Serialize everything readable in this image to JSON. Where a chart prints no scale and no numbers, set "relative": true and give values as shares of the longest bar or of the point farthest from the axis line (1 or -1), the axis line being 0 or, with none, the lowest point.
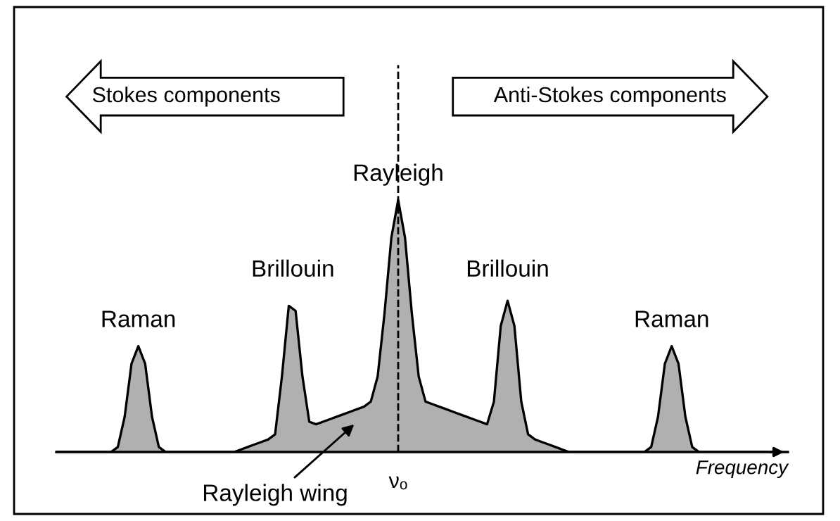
{
  "chart_data": {
    "type": "area",
    "relative": true,
    "xlabel": "Frequency",
    "color": "#b0b0b0",
    "categories": [
      null,
      null,
      null,
      null,
      null,
      null,
      null,
      null,
      null,
      null,
      null,
      null,
      null,
      null,
      null,
      null,
      null,
      null,
      null,
      null,
      null,
      null,
      null,
      null,
      null,
      null,
      null,
      null,
      null,
      null,
      null,
      null,
      null,
      null,
      null,
      null,
      null,
      null,
      null,
      null,
      null,
      null,
      null,
      null,
      null,
      null,
      null,
      null,
      null,
      null,
      null,
      null,
      null,
      null,
      null,
      null,
      null,
      null,
      null,
      null,
      null,
      null,
      null,
      null,
      null,
      null,
      null,
      null,
      null,
      null,
      null,
      null,
      null,
      null,
      null,
      null,
      null,
      null,
      null,
      null,
      null,
      null,
      null,
      null,
      null,
      null,
      null,
      null,
      null,
      null,
      null,
      null,
      null,
      null,
      null,
      null,
      null,
      null,
      null,
      null,
      null,
      null,
      null,
      null,
      null
    ],
    "values": [
      0,
      0,
      0,
      0,
      0,
      0,
      0,
      0,
      0,
      0.02,
      0.14,
      0.35,
      0.42,
      0.35,
      0.14,
      0.02,
      0,
      0,
      0,
      0,
      0,
      0,
      0,
      0,
      0,
      0,
      0,
      0.01,
      0.02,
      0.03,
      0.04,
      0.05,
      0.07,
      0.3,
      0.58,
      0.56,
      0.3,
      0.12,
      0.11,
      0.12,
      0.13,
      0.14,
      0.15,
      0.16,
      0.17,
      0.18,
      0.2,
      0.3,
      0.55,
      0.85,
      1,
      0.85,
      0.55,
      0.3,
      0.2,
      0.19,
      0.18,
      0.17,
      0.16,
      0.15,
      0.14,
      0.13,
      0.12,
      0.11,
      0.2,
      0.5,
      0.6,
      0.5,
      0.2,
      0.07,
      0.05,
      0.04,
      0.03,
      0.02,
      0.01,
      0,
      0,
      0,
      0,
      0,
      0,
      0,
      0,
      0,
      0,
      0,
      0,
      0.02,
      0.14,
      0.35,
      0.42,
      0.35,
      0.14,
      0.02,
      0,
      0,
      0,
      0,
      0,
      0,
      0,
      0,
      0,
      0,
      0
    ],
    "annotations": [
      "Stokes components",
      "Anti-Stokes components",
      "Raman",
      "Brillouin",
      "Rayleigh",
      "Brillouin",
      "Raman",
      "Rayleigh wing",
      "νₒ"
    ]
  }
}
